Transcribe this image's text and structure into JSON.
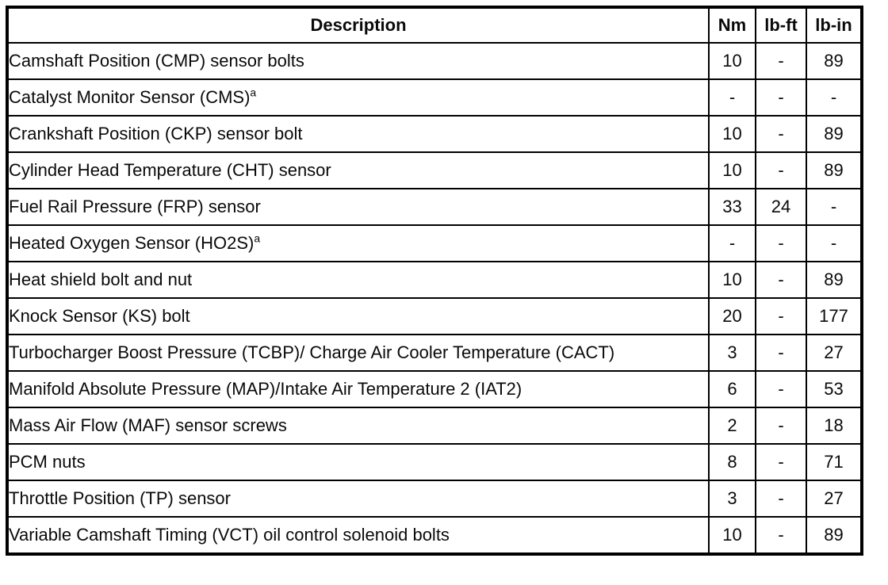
{
  "table": {
    "columns": [
      "Description",
      "Nm",
      "lb-ft",
      "lb-in"
    ],
    "rows": [
      {
        "description": "Camshaft Position (CMP) sensor bolts",
        "sup": "",
        "nm": "10",
        "lbft": "-",
        "lbin": "89"
      },
      {
        "description": "Catalyst Monitor Sensor (CMS)",
        "sup": "a",
        "nm": "-",
        "lbft": "-",
        "lbin": "-"
      },
      {
        "description": "Crankshaft Position (CKP) sensor bolt",
        "sup": "",
        "nm": "10",
        "lbft": "-",
        "lbin": "89"
      },
      {
        "description": "Cylinder Head Temperature (CHT) sensor",
        "sup": "",
        "nm": "10",
        "lbft": "-",
        "lbin": "89"
      },
      {
        "description": "Fuel Rail Pressure (FRP) sensor",
        "sup": "",
        "nm": "33",
        "lbft": "24",
        "lbin": "-"
      },
      {
        "description": "Heated Oxygen Sensor (HO2S)",
        "sup": "a",
        "nm": "-",
        "lbft": "-",
        "lbin": "-"
      },
      {
        "description": "Heat shield bolt and nut",
        "sup": "",
        "nm": "10",
        "lbft": "-",
        "lbin": "89"
      },
      {
        "description": "Knock Sensor (KS) bolt",
        "sup": "",
        "nm": "20",
        "lbft": "-",
        "lbin": "177"
      },
      {
        "description": "Turbocharger Boost Pressure (TCBP)/ Charge Air Cooler Temperature (CACT)",
        "sup": "",
        "nm": "3",
        "lbft": "-",
        "lbin": "27"
      },
      {
        "description": "Manifold Absolute Pressure (MAP)/Intake Air Temperature 2 (IAT2)",
        "sup": "",
        "nm": "6",
        "lbft": "-",
        "lbin": "53"
      },
      {
        "description": "Mass Air Flow (MAF) sensor screws",
        "sup": "",
        "nm": "2",
        "lbft": "-",
        "lbin": "18"
      },
      {
        "description": "PCM nuts",
        "sup": "",
        "nm": "8",
        "lbft": "-",
        "lbin": "71"
      },
      {
        "description": "Throttle Position (TP) sensor",
        "sup": "",
        "nm": "3",
        "lbft": "-",
        "lbin": "27"
      },
      {
        "description": "Variable Camshaft Timing (VCT) oil control solenoid bolts",
        "sup": "",
        "nm": "10",
        "lbft": "-",
        "lbin": "89"
      }
    ]
  }
}
